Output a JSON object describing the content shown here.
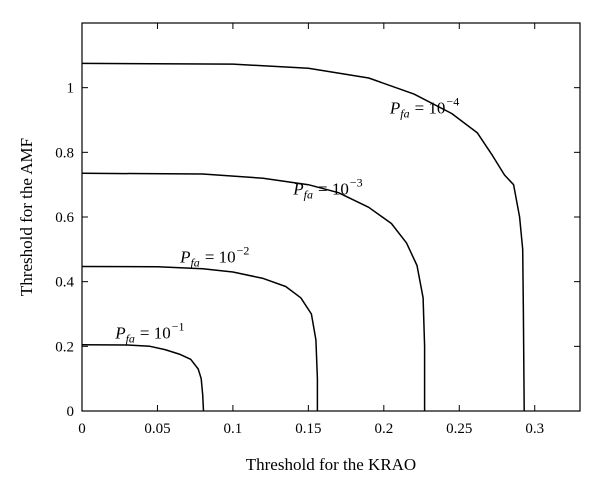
{
  "chart_data": {
    "type": "line",
    "title": "",
    "xlabel": "Threshold for the KRAO",
    "ylabel": "Threshold for the AMF",
    "xlim": [
      0,
      0.33
    ],
    "ylim": [
      0,
      1.2
    ],
    "xticks": [
      0,
      0.05,
      0.1,
      0.15,
      0.2,
      0.25,
      0.3
    ],
    "xtick_labels": [
      "0",
      "0.05",
      "0.1",
      "0.15",
      "0.2",
      "0.25",
      "0.3"
    ],
    "yticks": [
      0,
      0.2,
      0.4,
      0.6,
      0.8,
      1
    ],
    "ytick_labels": [
      "0",
      "0.2",
      "0.4",
      "0.6",
      "0.8",
      "1"
    ],
    "grid": false,
    "legend": "none",
    "line_color": "#000000",
    "series": [
      {
        "name": "P_fa = 10^-1",
        "annotation": {
          "symbol": "P",
          "sub": "fa",
          "eq": "= 10",
          "sup": "−1",
          "x": 0.022,
          "y": 0.225
        },
        "points": [
          [
            0,
            0.205
          ],
          [
            0.03,
            0.204
          ],
          [
            0.045,
            0.2
          ],
          [
            0.055,
            0.19
          ],
          [
            0.065,
            0.175
          ],
          [
            0.072,
            0.16
          ],
          [
            0.077,
            0.13
          ],
          [
            0.079,
            0.1
          ],
          [
            0.08,
            0.05
          ],
          [
            0.0805,
            0
          ]
        ]
      },
      {
        "name": "P_fa = 10^-2",
        "annotation": {
          "symbol": "P",
          "sub": "fa",
          "eq": "= 10",
          "sup": "−2",
          "x": 0.065,
          "y": 0.46
        },
        "points": [
          [
            0,
            0.447
          ],
          [
            0.05,
            0.446
          ],
          [
            0.08,
            0.44
          ],
          [
            0.1,
            0.43
          ],
          [
            0.12,
            0.41
          ],
          [
            0.135,
            0.385
          ],
          [
            0.145,
            0.35
          ],
          [
            0.152,
            0.3
          ],
          [
            0.155,
            0.22
          ],
          [
            0.156,
            0.1
          ],
          [
            0.156,
            0
          ]
        ]
      },
      {
        "name": "P_fa = 10^-3",
        "annotation": {
          "symbol": "P",
          "sub": "fa",
          "eq": "= 10",
          "sup": "−3",
          "x": 0.14,
          "y": 0.67
        },
        "points": [
          [
            0,
            0.735
          ],
          [
            0.08,
            0.733
          ],
          [
            0.12,
            0.72
          ],
          [
            0.15,
            0.7
          ],
          [
            0.17,
            0.675
          ],
          [
            0.19,
            0.63
          ],
          [
            0.205,
            0.58
          ],
          [
            0.215,
            0.52
          ],
          [
            0.222,
            0.45
          ],
          [
            0.226,
            0.35
          ],
          [
            0.227,
            0.2
          ],
          [
            0.227,
            0
          ]
        ]
      },
      {
        "name": "P_fa = 10^-4",
        "annotation": {
          "symbol": "P",
          "sub": "fa",
          "eq": "= 10",
          "sup": "−4",
          "x": 0.204,
          "y": 0.92
        },
        "points": [
          [
            0,
            1.075
          ],
          [
            0.1,
            1.073
          ],
          [
            0.15,
            1.06
          ],
          [
            0.19,
            1.03
          ],
          [
            0.22,
            0.98
          ],
          [
            0.245,
            0.92
          ],
          [
            0.262,
            0.86
          ],
          [
            0.272,
            0.79
          ],
          [
            0.28,
            0.73
          ],
          [
            0.286,
            0.7
          ],
          [
            0.29,
            0.6
          ],
          [
            0.292,
            0.5
          ],
          [
            0.2925,
            0.3
          ],
          [
            0.293,
            0
          ]
        ]
      }
    ]
  }
}
